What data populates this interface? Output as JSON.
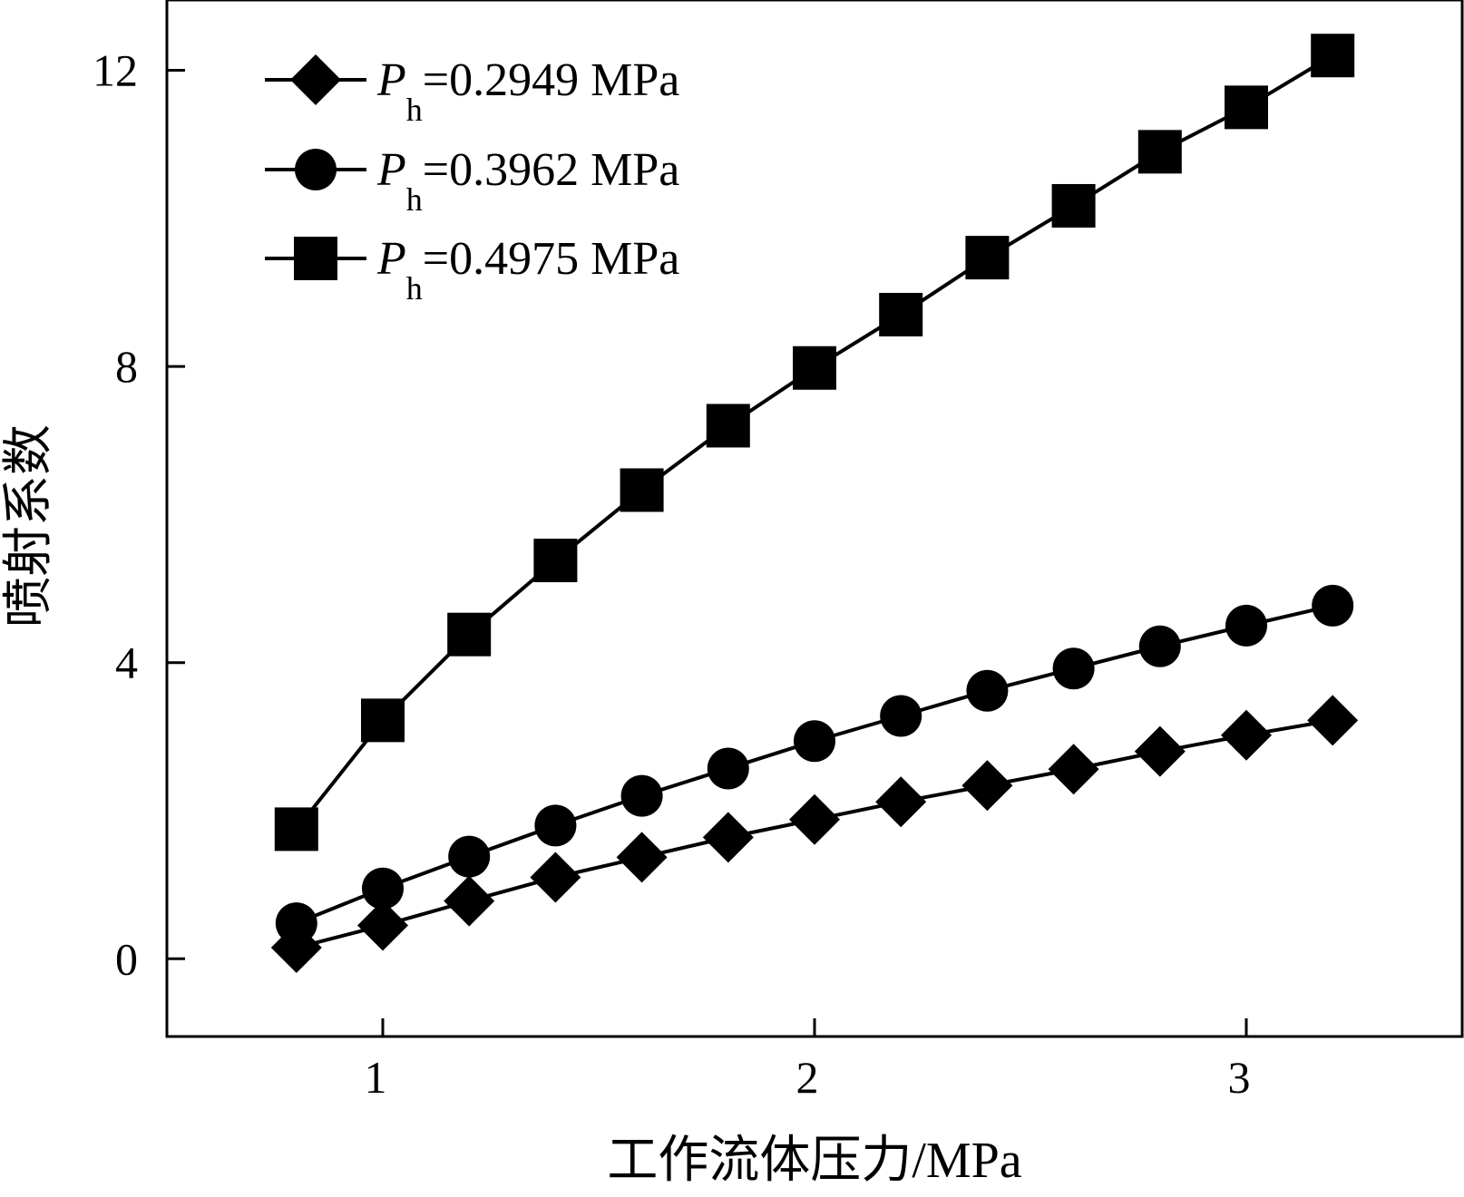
{
  "chart_data": {
    "type": "line",
    "title": "",
    "xlabel": "工作流体压力/MPa",
    "ylabel": "喷射系数",
    "xlim": [
      0.5,
      3.5
    ],
    "ylim": [
      -1.05,
      12.95
    ],
    "xticks": [
      "1",
      "2",
      "3"
    ],
    "yticks": [
      "0",
      "4",
      "8",
      "12"
    ],
    "grid": false,
    "legend_position": "top-left",
    "x": [
      0.8,
      1.0,
      1.2,
      1.4,
      1.6,
      1.8,
      2.0,
      2.2,
      2.4,
      2.6,
      2.8,
      3.0,
      3.2
    ],
    "series": [
      {
        "name": "P_h=0.2949 MPa",
        "legend_symbol": "P",
        "legend_subscript": "h",
        "legend_rest": "=0.2949 MPa",
        "marker": "diamond",
        "values": [
          0.15,
          0.45,
          0.78,
          1.1,
          1.37,
          1.64,
          1.88,
          2.12,
          2.34,
          2.56,
          2.8,
          3.02,
          3.22
        ]
      },
      {
        "name": "P_h=0.3962 MPa",
        "legend_symbol": "P",
        "legend_subscript": "h",
        "legend_rest": "=0.3962 MPa",
        "marker": "circle",
        "values": [
          0.48,
          0.95,
          1.38,
          1.8,
          2.2,
          2.57,
          2.94,
          3.28,
          3.62,
          3.92,
          4.22,
          4.5,
          4.77
        ]
      },
      {
        "name": "P_h=0.4975 MPa",
        "legend_symbol": "P",
        "legend_subscript": "h",
        "legend_rest": "=0.4975 MPa",
        "marker": "square",
        "values": [
          1.75,
          3.22,
          4.38,
          5.38,
          6.33,
          7.2,
          7.98,
          8.7,
          9.47,
          10.17,
          10.9,
          11.5,
          12.2
        ]
      }
    ],
    "colors": {
      "line": "#000000",
      "marker": "#000000",
      "background": "#ffffff"
    }
  }
}
